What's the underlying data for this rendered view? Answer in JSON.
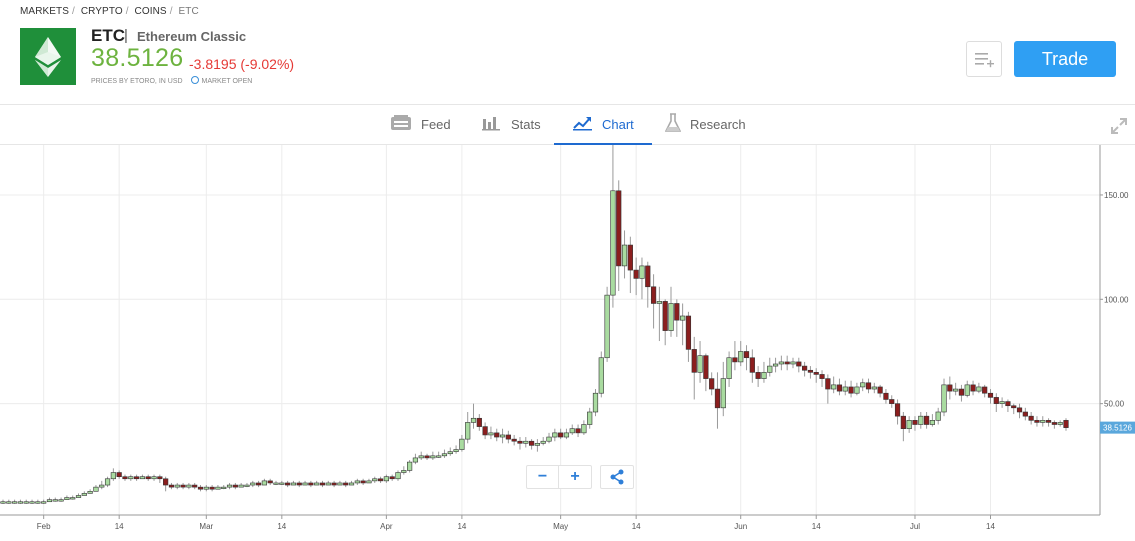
{
  "breadcrumb": {
    "items": [
      "MARKETS",
      "CRYPTO",
      "COINS",
      "ETC"
    ],
    "sep": "/"
  },
  "instrument": {
    "symbol": "ETC",
    "name": "Ethereum Classic",
    "price": "38.5126",
    "change": "-3.8195 (-9.02%)",
    "price_note": "PRICES BY ETORO, IN USD",
    "market_status": "MARKET OPEN",
    "colors": {
      "price": "#6db33f",
      "change": "#e53935",
      "logo_bg": "#1f8f3a"
    }
  },
  "actions": {
    "trade_label": "Trade",
    "watchlist_icon": "list-add-icon"
  },
  "tabs": [
    {
      "label": "Feed",
      "icon": "feed-icon",
      "active": false
    },
    {
      "label": "Stats",
      "icon": "stats-icon",
      "active": false
    },
    {
      "label": "Chart",
      "icon": "chart-icon",
      "active": true
    },
    {
      "label": "Research",
      "icon": "flask-icon",
      "active": false
    }
  ],
  "chart_data": {
    "type": "candlestick",
    "title": "",
    "xlabel": "",
    "ylabel": "",
    "ylim": [
      0,
      175
    ],
    "yticks": [
      50,
      100,
      150
    ],
    "ytick_labels": [
      "50.00",
      "100.00",
      "150.00"
    ],
    "xtick_labels": [
      "Feb",
      "14",
      "Mar",
      "14",
      "Apr",
      "14",
      "May",
      "14",
      "Jun",
      "14",
      "Jul",
      "14"
    ],
    "xtick_days": [
      31,
      44,
      59,
      72,
      90,
      103,
      120,
      133,
      151,
      164,
      181,
      194
    ],
    "day_range": [
      24,
      207
    ],
    "last_price_label": "38.5126",
    "up_color": "#a9dba0",
    "down_color": "#8b1e1e",
    "candles": [
      [
        24,
        3,
        3,
        2,
        4
      ],
      [
        25,
        3,
        3,
        2,
        4
      ],
      [
        26,
        3,
        3,
        2,
        4
      ],
      [
        27,
        3,
        3,
        2,
        4
      ],
      [
        28,
        3,
        3,
        2,
        4
      ],
      [
        29,
        3,
        3,
        2,
        4
      ],
      [
        30,
        3,
        3,
        2,
        4
      ],
      [
        31,
        3,
        3,
        2,
        4
      ],
      [
        32,
        3,
        4,
        3,
        5
      ],
      [
        33,
        4,
        4,
        3,
        5
      ],
      [
        34,
        4,
        4,
        3,
        5
      ],
      [
        35,
        4,
        5,
        4,
        6
      ],
      [
        36,
        5,
        5,
        4,
        6
      ],
      [
        37,
        5,
        6,
        5,
        7
      ],
      [
        38,
        6,
        7,
        6,
        8
      ],
      [
        39,
        7,
        8,
        7,
        9
      ],
      [
        40,
        8,
        10,
        8,
        11
      ],
      [
        41,
        10,
        11,
        9,
        13
      ],
      [
        42,
        11,
        14,
        10,
        15
      ],
      [
        43,
        14,
        17,
        13,
        19
      ],
      [
        44,
        17,
        15,
        14,
        18
      ],
      [
        45,
        15,
        14,
        13,
        16
      ],
      [
        46,
        14,
        15,
        13,
        16
      ],
      [
        47,
        15,
        14,
        13,
        16
      ],
      [
        48,
        14,
        15,
        14,
        16
      ],
      [
        49,
        15,
        14,
        13,
        16
      ],
      [
        50,
        14,
        15,
        13,
        16
      ],
      [
        51,
        15,
        14,
        12,
        16
      ],
      [
        52,
        14,
        11,
        8,
        15
      ],
      [
        53,
        11,
        10,
        9,
        12
      ],
      [
        54,
        10,
        11,
        9,
        12
      ],
      [
        55,
        11,
        10,
        9,
        12
      ],
      [
        56,
        10,
        11,
        9,
        12
      ],
      [
        57,
        11,
        10,
        9,
        12
      ],
      [
        58,
        10,
        9,
        8,
        11
      ],
      [
        59,
        9,
        10,
        8,
        11
      ],
      [
        60,
        10,
        9,
        8,
        11
      ],
      [
        61,
        9,
        10,
        9,
        11
      ],
      [
        62,
        10,
        10,
        9,
        11
      ],
      [
        63,
        10,
        11,
        9,
        12
      ],
      [
        64,
        11,
        10,
        9,
        12
      ],
      [
        65,
        10,
        11,
        10,
        12
      ],
      [
        66,
        11,
        11,
        10,
        12
      ],
      [
        67,
        11,
        12,
        10,
        13
      ],
      [
        68,
        12,
        11,
        10,
        13
      ],
      [
        69,
        11,
        13,
        11,
        14
      ],
      [
        70,
        13,
        12,
        11,
        14
      ],
      [
        71,
        12,
        12,
        11,
        13
      ],
      [
        72,
        12,
        12,
        11,
        13
      ],
      [
        73,
        12,
        11,
        10,
        13
      ],
      [
        74,
        11,
        12,
        11,
        13
      ],
      [
        75,
        12,
        11,
        10,
        13
      ],
      [
        76,
        11,
        12,
        11,
        13
      ],
      [
        77,
        12,
        11,
        10,
        13
      ],
      [
        78,
        11,
        12,
        11,
        13
      ],
      [
        79,
        12,
        11,
        10,
        13
      ],
      [
        80,
        11,
        12,
        11,
        13
      ],
      [
        81,
        12,
        11,
        10,
        13
      ],
      [
        82,
        11,
        12,
        11,
        13
      ],
      [
        83,
        12,
        11,
        10,
        13
      ],
      [
        84,
        11,
        12,
        11,
        13
      ],
      [
        85,
        12,
        13,
        11,
        14
      ],
      [
        86,
        13,
        12,
        11,
        14
      ],
      [
        87,
        12,
        13,
        12,
        14
      ],
      [
        88,
        13,
        14,
        12,
        15
      ],
      [
        89,
        14,
        13,
        12,
        15
      ],
      [
        90,
        13,
        15,
        12,
        16
      ],
      [
        91,
        15,
        14,
        13,
        16
      ],
      [
        92,
        14,
        17,
        13,
        18
      ],
      [
        93,
        17,
        18,
        16,
        20
      ],
      [
        94,
        18,
        22,
        17,
        23
      ],
      [
        95,
        22,
        24,
        21,
        26
      ],
      [
        96,
        24,
        25,
        23,
        27
      ],
      [
        97,
        25,
        24,
        23,
        26
      ],
      [
        98,
        24,
        25,
        23,
        27
      ],
      [
        99,
        25,
        25,
        24,
        27
      ],
      [
        100,
        25,
        26,
        24,
        28
      ],
      [
        101,
        26,
        27,
        25,
        29
      ],
      [
        102,
        27,
        28,
        26,
        30
      ],
      [
        103,
        28,
        33,
        27,
        35
      ],
      [
        104,
        33,
        41,
        31,
        46
      ],
      [
        105,
        41,
        43,
        38,
        50
      ],
      [
        106,
        43,
        39,
        37,
        45
      ],
      [
        107,
        39,
        35,
        33,
        41
      ],
      [
        108,
        35,
        36,
        33,
        39
      ],
      [
        109,
        36,
        34,
        32,
        38
      ],
      [
        110,
        34,
        35,
        31,
        38
      ],
      [
        111,
        35,
        33,
        31,
        37
      ],
      [
        112,
        33,
        32,
        30,
        35
      ],
      [
        113,
        32,
        31,
        28,
        34
      ],
      [
        114,
        31,
        32,
        29,
        34
      ],
      [
        115,
        32,
        30,
        28,
        33
      ],
      [
        116,
        30,
        31,
        27,
        33
      ],
      [
        117,
        31,
        32,
        30,
        34
      ],
      [
        118,
        32,
        34,
        31,
        36
      ],
      [
        119,
        34,
        36,
        32,
        38
      ],
      [
        120,
        36,
        34,
        33,
        38
      ],
      [
        121,
        34,
        36,
        33,
        38
      ],
      [
        122,
        36,
        38,
        35,
        40
      ],
      [
        123,
        38,
        36,
        34,
        40
      ],
      [
        124,
        36,
        40,
        35,
        42
      ],
      [
        125,
        40,
        46,
        38,
        48
      ],
      [
        126,
        46,
        55,
        44,
        57
      ],
      [
        127,
        55,
        72,
        53,
        75
      ],
      [
        128,
        72,
        102,
        70,
        106
      ],
      [
        129,
        102,
        152,
        96,
        179
      ],
      [
        130,
        152,
        116,
        104,
        157
      ],
      [
        131,
        116,
        126,
        110,
        133
      ],
      [
        132,
        126,
        114,
        103,
        130
      ],
      [
        133,
        114,
        110,
        102,
        120
      ],
      [
        134,
        110,
        116,
        100,
        120
      ],
      [
        135,
        116,
        106,
        96,
        118
      ],
      [
        136,
        106,
        98,
        86,
        112
      ],
      [
        137,
        98,
        99,
        80,
        106
      ],
      [
        138,
        99,
        85,
        78,
        100
      ],
      [
        139,
        85,
        98,
        82,
        106
      ],
      [
        140,
        98,
        90,
        82,
        100
      ],
      [
        141,
        90,
        92,
        78,
        98
      ],
      [
        142,
        92,
        76,
        70,
        94
      ],
      [
        143,
        76,
        65,
        52,
        82
      ],
      [
        144,
        65,
        73,
        60,
        80
      ],
      [
        145,
        73,
        62,
        56,
        74
      ],
      [
        146,
        62,
        57,
        54,
        65
      ],
      [
        147,
        57,
        48,
        38,
        65
      ],
      [
        148,
        48,
        62,
        44,
        70
      ],
      [
        149,
        62,
        72,
        58,
        75
      ],
      [
        150,
        72,
        70,
        66,
        80
      ],
      [
        151,
        70,
        75,
        68,
        80
      ],
      [
        152,
        75,
        72,
        66,
        78
      ],
      [
        153,
        72,
        65,
        60,
        76
      ],
      [
        154,
        65,
        62,
        58,
        68
      ],
      [
        155,
        62,
        65,
        60,
        70
      ],
      [
        156,
        65,
        68,
        63,
        72
      ],
      [
        157,
        68,
        69,
        65,
        72
      ],
      [
        158,
        69,
        70,
        66,
        73
      ],
      [
        159,
        70,
        69,
        66,
        73
      ],
      [
        160,
        69,
        70,
        67,
        72
      ],
      [
        161,
        70,
        68,
        65,
        72
      ],
      [
        162,
        68,
        66,
        63,
        70
      ],
      [
        163,
        66,
        65,
        62,
        68
      ],
      [
        164,
        65,
        64,
        60,
        67
      ],
      [
        165,
        64,
        62,
        58,
        66
      ],
      [
        166,
        62,
        57,
        50,
        64
      ],
      [
        167,
        57,
        59,
        55,
        63
      ],
      [
        168,
        59,
        56,
        54,
        62
      ],
      [
        169,
        56,
        58,
        54,
        61
      ],
      [
        170,
        58,
        55,
        53,
        61
      ],
      [
        171,
        55,
        58,
        54,
        60
      ],
      [
        172,
        58,
        60,
        56,
        62
      ],
      [
        173,
        60,
        57,
        55,
        62
      ],
      [
        174,
        57,
        58,
        55,
        60
      ],
      [
        175,
        58,
        55,
        53,
        59
      ],
      [
        176,
        55,
        52,
        50,
        57
      ],
      [
        177,
        52,
        50,
        48,
        54
      ],
      [
        178,
        50,
        44,
        40,
        52
      ],
      [
        179,
        44,
        38,
        32,
        46
      ],
      [
        180,
        38,
        42,
        36,
        44
      ],
      [
        181,
        42,
        40,
        37,
        44
      ],
      [
        182,
        40,
        44,
        38,
        46
      ],
      [
        183,
        44,
        40,
        38,
        46
      ],
      [
        184,
        40,
        42,
        39,
        45
      ],
      [
        185,
        42,
        46,
        40,
        48
      ],
      [
        186,
        46,
        59,
        44,
        62
      ],
      [
        187,
        59,
        56,
        52,
        63
      ],
      [
        188,
        56,
        57,
        54,
        60
      ],
      [
        189,
        57,
        54,
        51,
        59
      ],
      [
        190,
        54,
        59,
        53,
        61
      ],
      [
        191,
        59,
        56,
        54,
        61
      ],
      [
        192,
        56,
        58,
        55,
        60
      ],
      [
        193,
        58,
        55,
        53,
        59
      ],
      [
        194,
        55,
        53,
        50,
        57
      ],
      [
        195,
        53,
        50,
        46,
        55
      ],
      [
        196,
        50,
        51,
        48,
        53
      ],
      [
        197,
        51,
        49,
        46,
        52
      ],
      [
        198,
        49,
        48,
        45,
        50
      ],
      [
        199,
        48,
        46,
        43,
        50
      ],
      [
        200,
        46,
        44,
        42,
        48
      ],
      [
        201,
        44,
        42,
        40,
        46
      ],
      [
        202,
        42,
        41,
        39,
        44
      ],
      [
        203,
        41,
        42,
        39,
        44
      ],
      [
        204,
        42,
        41,
        39,
        43
      ],
      [
        205,
        41,
        40,
        38,
        42
      ],
      [
        206,
        40,
        41,
        39,
        42
      ],
      [
        207,
        42,
        38.5,
        37,
        43
      ]
    ]
  }
}
